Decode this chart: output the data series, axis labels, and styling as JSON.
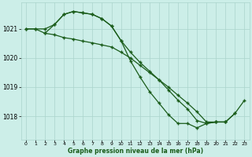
{
  "xlabel": "Graphe pression niveau de la mer (hPa)",
  "background_color": "#cceee8",
  "grid_color": "#aad4cc",
  "line_color": "#1a5c1a",
  "xlim": [
    -0.5,
    23.5
  ],
  "ylim": [
    1017.2,
    1021.9
  ],
  "yticks": [
    1018,
    1019,
    1020,
    1021
  ],
  "xticks": [
    0,
    1,
    2,
    3,
    4,
    5,
    6,
    7,
    8,
    9,
    10,
    11,
    12,
    13,
    14,
    15,
    16,
    17,
    18,
    19,
    20,
    21,
    22,
    23
  ],
  "series1_x": [
    0,
    1,
    2,
    3,
    4,
    5,
    6,
    7,
    8,
    9,
    10,
    11,
    12,
    13,
    14,
    15,
    16,
    17,
    18,
    19,
    20,
    21,
    22
  ],
  "series1_y": [
    1021.0,
    1021.0,
    1021.0,
    1021.15,
    1021.5,
    1021.6,
    1021.55,
    1021.5,
    1021.35,
    1021.1,
    1020.6,
    1020.2,
    1019.85,
    1019.55,
    1019.25,
    1018.9,
    1018.55,
    1018.25,
    1017.85,
    1017.75,
    1017.8,
    1017.8,
    1018.1
  ],
  "series2_x": [
    0,
    1,
    2,
    3,
    4,
    5,
    6,
    7,
    8,
    9,
    10,
    11,
    12,
    13,
    14,
    15,
    16,
    17,
    18,
    19,
    20,
    21
  ],
  "series2_y": [
    1021.0,
    1021.0,
    1020.85,
    1020.8,
    1020.7,
    1020.65,
    1020.58,
    1020.52,
    1020.45,
    1020.38,
    1020.2,
    1020.0,
    1019.75,
    1019.5,
    1019.25,
    1019.0,
    1018.72,
    1018.45,
    1018.15,
    1017.8,
    1017.8,
    1017.8
  ],
  "series3_x": [
    2,
    3,
    4,
    5,
    6,
    7,
    8,
    9,
    10,
    11,
    12,
    13,
    14,
    15,
    16,
    17,
    18,
    19,
    20,
    21,
    22,
    23
  ],
  "series3_y": [
    1020.85,
    1021.15,
    1021.5,
    1021.6,
    1021.55,
    1021.5,
    1021.35,
    1021.1,
    1020.6,
    1019.9,
    1019.35,
    1018.85,
    1018.45,
    1018.05,
    1017.75,
    1017.75,
    1017.6,
    1017.75,
    1017.8,
    1017.8,
    1018.1,
    1018.55
  ]
}
